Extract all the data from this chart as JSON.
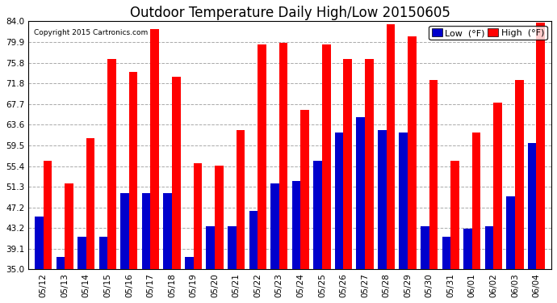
{
  "title": "Outdoor Temperature Daily High/Low 20150605",
  "copyright": "Copyright 2015 Cartronics.com",
  "legend_low": "Low  (°F)",
  "legend_high": "High  (°F)",
  "dates": [
    "05/12",
    "05/13",
    "05/14",
    "05/15",
    "05/16",
    "05/17",
    "05/18",
    "05/19",
    "05/20",
    "05/21",
    "05/22",
    "05/23",
    "05/24",
    "05/25",
    "05/26",
    "05/27",
    "05/28",
    "05/29",
    "05/30",
    "05/31",
    "06/01",
    "06/02",
    "06/03",
    "06/04"
  ],
  "highs": [
    56.5,
    52.0,
    61.0,
    76.5,
    74.0,
    82.5,
    73.0,
    56.0,
    55.5,
    62.5,
    79.5,
    79.8,
    66.5,
    79.5,
    76.5,
    76.5,
    83.5,
    81.0,
    72.5,
    56.5,
    62.0,
    68.0,
    72.5,
    83.8
  ],
  "lows": [
    45.5,
    37.5,
    41.5,
    41.5,
    50.0,
    50.0,
    50.0,
    37.5,
    43.5,
    43.5,
    46.5,
    52.0,
    52.5,
    56.5,
    62.0,
    65.0,
    62.5,
    62.0,
    43.5,
    41.5,
    43.0,
    43.5,
    49.5,
    60.0
  ],
  "ymin": 35.0,
  "ymax": 84.0,
  "yticks": [
    35.0,
    39.1,
    43.2,
    47.2,
    51.3,
    55.4,
    59.5,
    63.6,
    67.7,
    71.8,
    75.8,
    79.9,
    84.0
  ],
  "bar_width": 0.4,
  "color_high": "#ff0000",
  "color_low": "#0000cc",
  "bg_color": "#ffffff",
  "grid_color": "#aaaaaa",
  "title_fontsize": 12,
  "tick_fontsize": 7.5,
  "legend_fontsize": 8
}
